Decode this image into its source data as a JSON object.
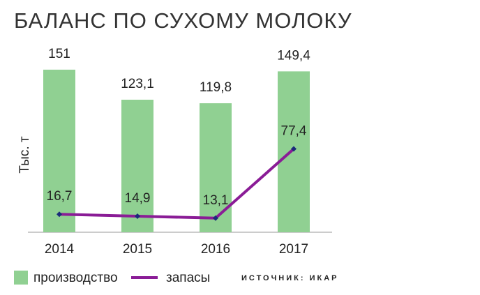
{
  "chart_data": {
    "type": "bar",
    "title": "БАЛАНС ПО СУХОМУ МОЛОКУ",
    "y_label": "Тыс. т",
    "source": "ИСТОЧНИК: ИКАР",
    "categories": [
      "2014",
      "2015",
      "2016",
      "2017"
    ],
    "series": [
      {
        "name": "производство",
        "type": "bar",
        "color": "#90d092",
        "values": [
          151,
          123.1,
          119.8,
          149.4
        ],
        "value_labels": [
          "151",
          "123,1",
          "119,8",
          "149,4"
        ]
      },
      {
        "name": "запасы",
        "type": "line",
        "color": "#8a1c96",
        "marker_color": "#1b2a7a",
        "values": [
          16.7,
          14.9,
          13.1,
          77.4
        ],
        "value_labels": [
          "16,7",
          "14,9",
          "13,1",
          "77,4"
        ]
      }
    ],
    "ylim": [
      0,
      160
    ]
  }
}
